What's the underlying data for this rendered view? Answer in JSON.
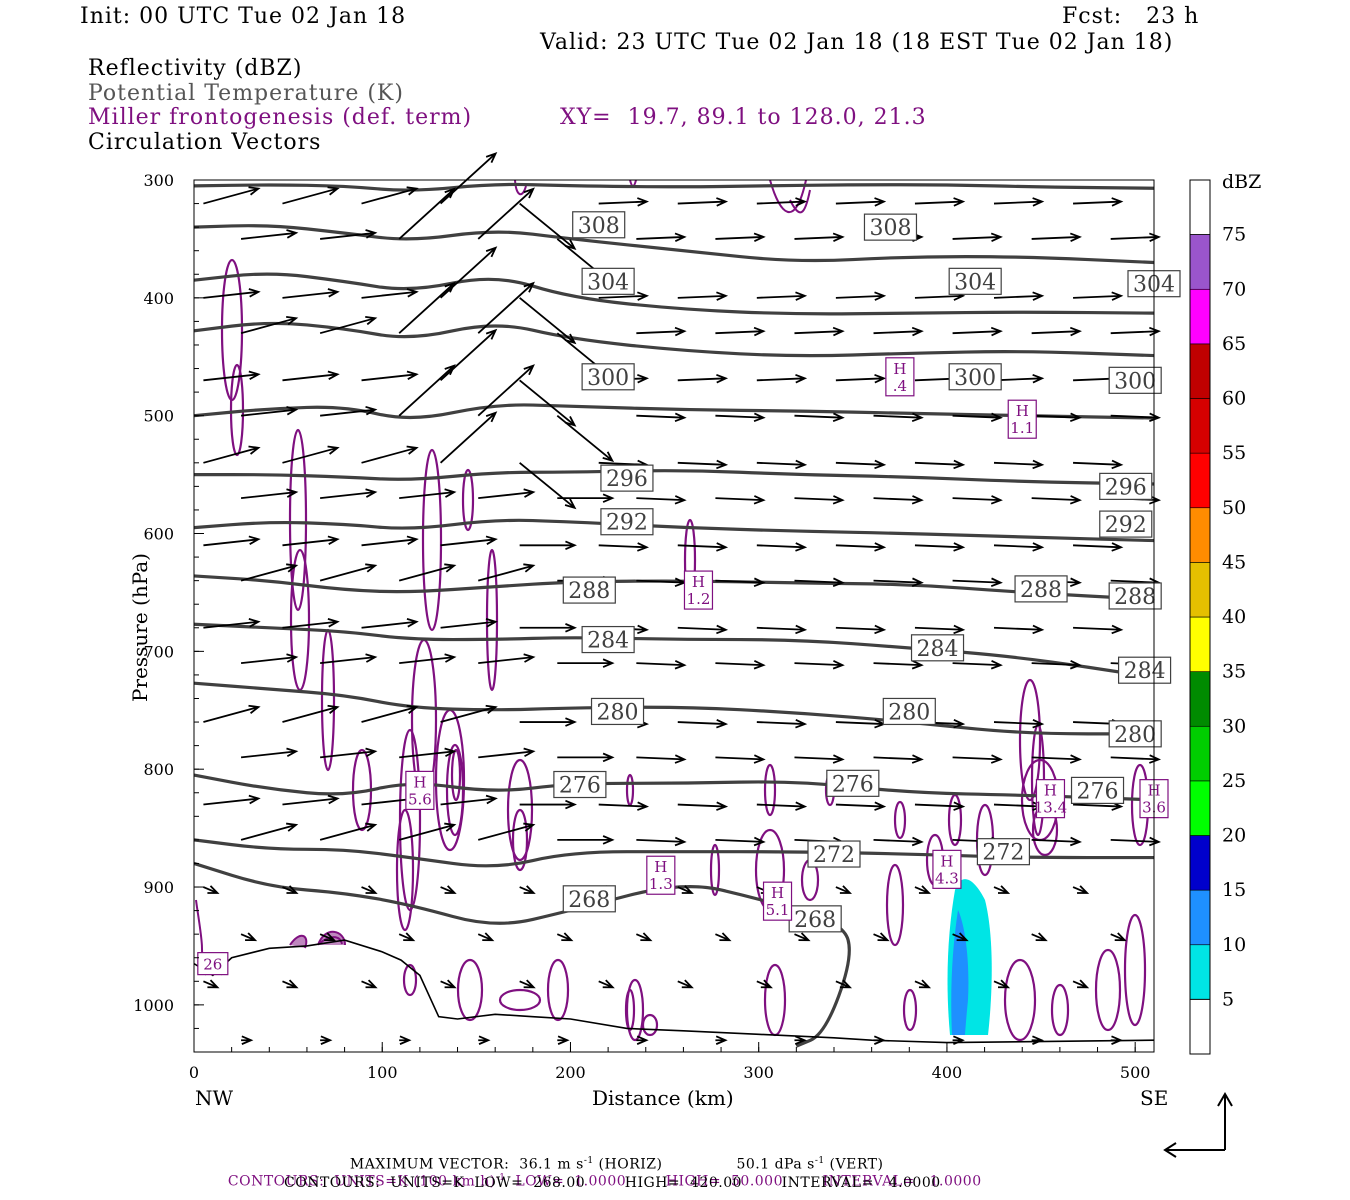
{
  "header": {
    "init": "Init: 00 UTC Tue 02 Jan 18",
    "fcst": "Fcst:   23 h",
    "valid": "Valid: 23 UTC Tue 02 Jan 18 (18 EST Tue 02 Jan 18)"
  },
  "legend_titles": {
    "reflectivity": "Reflectivity (dBZ)",
    "theta": "Potential Temperature (K)",
    "frontogenesis": "Miller frontogenesis (def. term)",
    "xy": "XY=  19.7, 89.1 to 128.0, 21.3",
    "vectors": "Circulation Vectors"
  },
  "axes": {
    "ylabel": "Pressure (hPa)",
    "xlabel": "Distance (km)",
    "left_end": "NW",
    "right_end": "SE"
  },
  "footer": {
    "max_vector": "MAXIMUM VECTOR:  36.1 m s",
    "max_vector_sup": "-1",
    "max_vector_horiz": " (HORIZ)",
    "max_vector_vert": "50.1 dPa s",
    "max_vector_vert_sup": "-1",
    "max_vector_vert_tail": " (VERT)",
    "contours_fronto": "CONTOURS:  UNITS=K (100 km h)",
    "contours_fronto_sup": "-1",
    "contours_fronto_tail": "  LOW=  1.0000        HIGH=  50.000        INTERVAL=   1.0000",
    "contours_theta": "CONTOURS:  UNITS=K  LOW=  268.00        HIGH=  420.00        INTERVAL=   4.0000"
  },
  "colors": {
    "theta": "#404040",
    "fronto": "#7f1080",
    "vector": "#000000",
    "terrain": "#000000"
  },
  "chart_data": {
    "type": "cross-section",
    "xlim": [
      0,
      510
    ],
    "ylim_hpa": [
      300,
      1040
    ],
    "y_scale": "linear, inverted",
    "x_ticks": [
      0,
      100,
      200,
      300,
      400,
      500
    ],
    "y_ticks": [
      300,
      400,
      500,
      600,
      700,
      800,
      900,
      1000
    ],
    "colorbar": {
      "title": "dBZ",
      "levels": [
        5,
        10,
        15,
        20,
        25,
        30,
        35,
        40,
        45,
        50,
        55,
        60,
        65,
        70,
        75
      ],
      "colors": [
        "#00e5e5",
        "#1e90ff",
        "#0000cc",
        "#00ff00",
        "#00cd00",
        "#008b00",
        "#ffff00",
        "#e5c000",
        "#ff8c00",
        "#ff0000",
        "#d60000",
        "#c00000",
        "#ff00ff",
        "#9a55cc"
      ]
    },
    "theta_contours": [
      {
        "value": 308,
        "pts": [
          [
            0,
            305
          ],
          [
            40,
            304
          ],
          [
            80,
            305
          ],
          [
            115,
            310
          ],
          [
            160,
            303
          ],
          [
            200,
            305
          ],
          [
            260,
            306
          ],
          [
            300,
            305
          ],
          [
            350,
            304
          ],
          [
            400,
            304
          ],
          [
            450,
            306
          ],
          [
            510,
            307
          ]
        ]
      },
      {
        "value": 308,
        "pts": [
          [
            0,
            340
          ],
          [
            40,
            338
          ],
          [
            80,
            345
          ],
          [
            115,
            352
          ],
          [
            160,
            342
          ],
          [
            200,
            350
          ],
          [
            260,
            360
          ],
          [
            320,
            370
          ],
          [
            380,
            365
          ],
          [
            440,
            365
          ],
          [
            510,
            370
          ]
        ]
      },
      {
        "value": 304,
        "pts": [
          [
            0,
            385
          ],
          [
            40,
            378
          ],
          [
            80,
            386
          ],
          [
            115,
            395
          ],
          [
            160,
            380
          ],
          [
            200,
            400
          ],
          [
            260,
            410
          ],
          [
            320,
            414
          ],
          [
            380,
            413
          ],
          [
            440,
            412
          ],
          [
            510,
            413
          ]
        ]
      },
      {
        "value": 304,
        "pts": [
          [
            0,
            428
          ],
          [
            40,
            420
          ],
          [
            80,
            426
          ],
          [
            115,
            436
          ],
          [
            160,
            420
          ],
          [
            200,
            435
          ],
          [
            260,
            445
          ],
          [
            320,
            450
          ],
          [
            380,
            447
          ],
          [
            440,
            445
          ],
          [
            510,
            449
          ]
        ]
      },
      {
        "value": 300,
        "pts": [
          [
            0,
            500
          ],
          [
            40,
            494
          ],
          [
            80,
            492
          ],
          [
            115,
            505
          ],
          [
            160,
            490
          ],
          [
            200,
            492
          ],
          [
            260,
            495
          ],
          [
            320,
            496
          ],
          [
            380,
            498
          ],
          [
            440,
            500
          ],
          [
            510,
            502
          ]
        ]
      },
      {
        "value": 296,
        "pts": [
          [
            0,
            550
          ],
          [
            40,
            550
          ],
          [
            80,
            552
          ],
          [
            115,
            555
          ],
          [
            160,
            548
          ],
          [
            200,
            548
          ],
          [
            260,
            546
          ],
          [
            320,
            550
          ],
          [
            380,
            552
          ],
          [
            440,
            556
          ],
          [
            510,
            558
          ]
        ]
      },
      {
        "value": 292,
        "pts": [
          [
            0,
            595
          ],
          [
            40,
            590
          ],
          [
            80,
            592
          ],
          [
            115,
            597
          ],
          [
            160,
            588
          ],
          [
            200,
            590
          ],
          [
            260,
            595
          ],
          [
            320,
            598
          ],
          [
            380,
            600
          ],
          [
            440,
            603
          ],
          [
            510,
            606
          ]
        ]
      },
      {
        "value": 288,
        "pts": [
          [
            0,
            636
          ],
          [
            40,
            640
          ],
          [
            80,
            648
          ],
          [
            115,
            650
          ],
          [
            160,
            645
          ],
          [
            200,
            641
          ],
          [
            260,
            640
          ],
          [
            320,
            642
          ],
          [
            380,
            643
          ],
          [
            440,
            650
          ],
          [
            510,
            656
          ]
        ]
      },
      {
        "value": 284,
        "pts": [
          [
            0,
            677
          ],
          [
            40,
            680
          ],
          [
            80,
            683
          ],
          [
            115,
            690
          ],
          [
            160,
            690
          ],
          [
            200,
            688
          ],
          [
            260,
            690
          ],
          [
            320,
            690
          ],
          [
            380,
            697
          ],
          [
            440,
            705
          ],
          [
            510,
            722
          ]
        ]
      },
      {
        "value": 280,
        "pts": [
          [
            0,
            727
          ],
          [
            40,
            732
          ],
          [
            80,
            737
          ],
          [
            115,
            748
          ],
          [
            160,
            750
          ],
          [
            200,
            748
          ],
          [
            260,
            747
          ],
          [
            320,
            752
          ],
          [
            380,
            760
          ],
          [
            440,
            770
          ],
          [
            510,
            770
          ]
        ]
      },
      {
        "value": 276,
        "pts": [
          [
            0,
            805
          ],
          [
            40,
            817
          ],
          [
            80,
            823
          ],
          [
            115,
            810
          ],
          [
            160,
            820
          ],
          [
            200,
            812
          ],
          [
            260,
            812
          ],
          [
            320,
            810
          ],
          [
            380,
            820
          ],
          [
            440,
            822
          ],
          [
            510,
            826
          ]
        ]
      },
      {
        "value": 272,
        "pts": [
          [
            0,
            860
          ],
          [
            40,
            868
          ],
          [
            80,
            868
          ],
          [
            115,
            875
          ],
          [
            160,
            885
          ],
          [
            200,
            870
          ],
          [
            260,
            870
          ],
          [
            320,
            870
          ],
          [
            380,
            872
          ],
          [
            440,
            875
          ],
          [
            510,
            875
          ]
        ]
      },
      {
        "value": 268,
        "pts": [
          [
            0,
            880
          ],
          [
            40,
            900
          ],
          [
            80,
            905
          ],
          [
            115,
            915
          ],
          [
            160,
            935
          ],
          [
            200,
            920
          ],
          [
            260,
            895
          ],
          [
            300,
            910
          ],
          [
            345,
            930
          ],
          [
            350,
            960
          ],
          [
            335,
            1025
          ],
          [
            320,
            1035
          ]
        ]
      }
    ],
    "max_points": [
      {
        "label": "H",
        "value": "5.6",
        "x": 120,
        "p": 818
      },
      {
        "label": "H",
        "value": "1.2",
        "x": 268,
        "p": 648
      },
      {
        "label": "H",
        "value": "1.3",
        "x": 248,
        "p": 890
      },
      {
        "label": "H",
        "value": "5.1",
        "x": 310,
        "p": 912
      },
      {
        "label": "H",
        "value": ".4",
        "x": 375,
        "p": 467
      },
      {
        "label": "H",
        "value": "1.1",
        "x": 440,
        "p": 503
      },
      {
        "label": "H",
        "value": "4.3",
        "x": 400,
        "p": 885
      },
      {
        "label": "H",
        "value": "13.4",
        "x": 455,
        "p": 825
      },
      {
        "label": "H",
        "value": "3.6",
        "x": 510,
        "p": 825
      },
      {
        "label": "",
        "value": "26",
        "x": 10,
        "p": 965
      }
    ],
    "vector_scale_km_per_unit": 1
  }
}
